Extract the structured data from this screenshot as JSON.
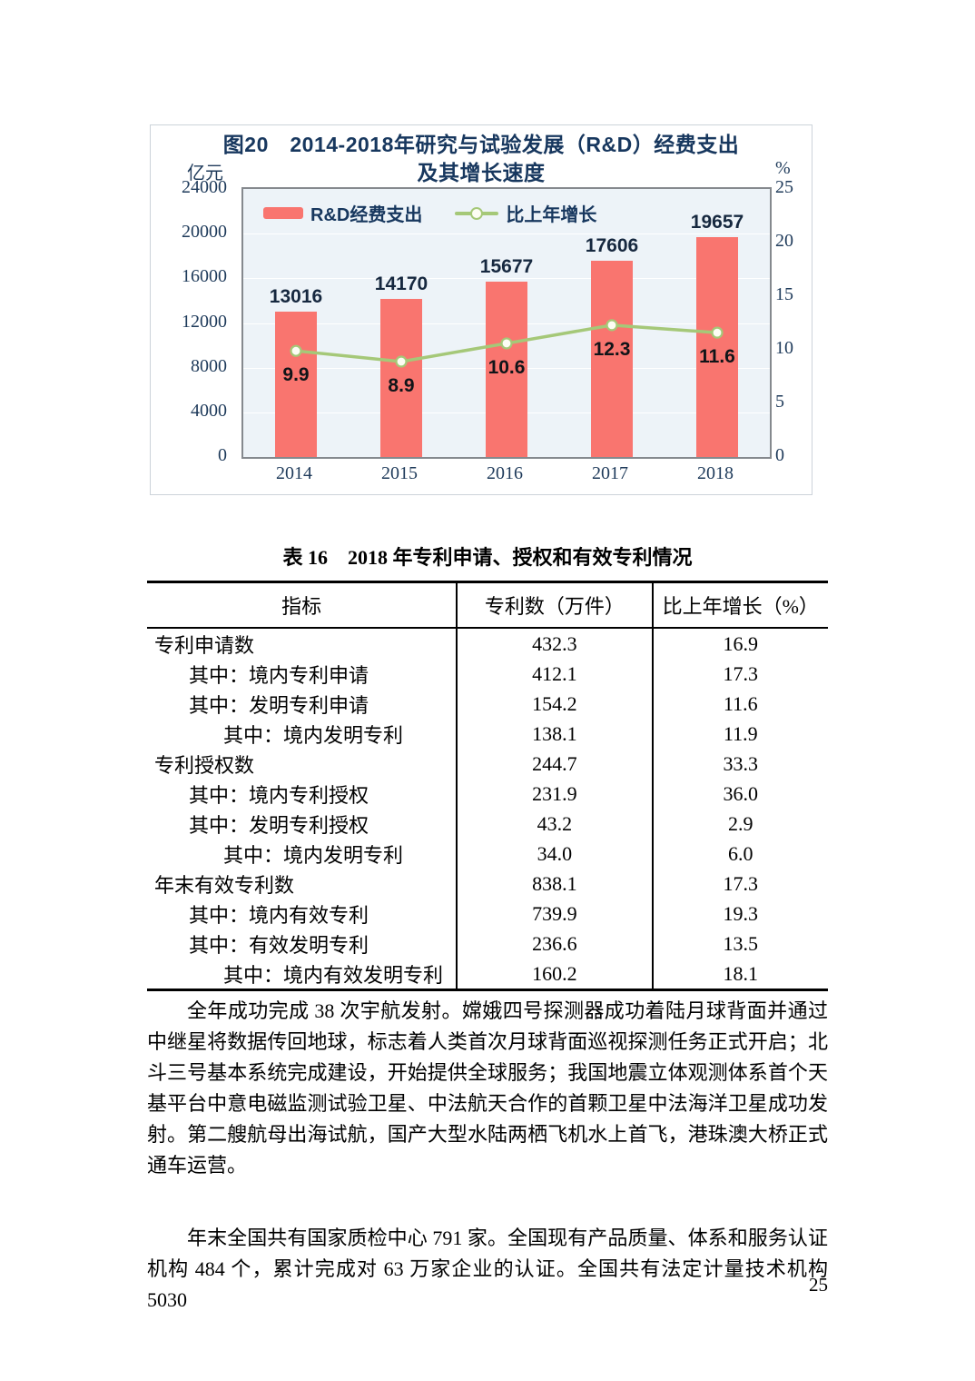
{
  "figure": {
    "title_lines": [
      "图20　2014-2018年研究与试验发展（R&D）经费支出",
      "及其增长速度"
    ],
    "left_unit": "亿元",
    "right_unit": "%"
  },
  "chart_data": {
    "type": "bar",
    "title": "图20 2014-2018年研究与试验发展（R&D）经费支出及其增长速度",
    "categories": [
      "2014",
      "2015",
      "2016",
      "2017",
      "2018"
    ],
    "series": [
      {
        "name": "R&D经费支出",
        "type": "bar",
        "axis": "left",
        "color": "#F9756F",
        "values": [
          13016,
          14170,
          15677,
          17606,
          19657
        ]
      },
      {
        "name": "比上年增长",
        "type": "line",
        "axis": "right",
        "color": "#A5C878",
        "values": [
          9.9,
          8.9,
          10.6,
          12.3,
          11.6
        ]
      }
    ],
    "left_axis": {
      "unit": "亿元",
      "min": 0,
      "max": 24000,
      "ticks": [
        24000,
        20000,
        16000,
        12000,
        8000,
        4000,
        0
      ]
    },
    "right_axis": {
      "unit": "%",
      "min": 0,
      "max": 25,
      "ticks": [
        25,
        20,
        15,
        10,
        5,
        0
      ]
    },
    "grid": true,
    "legend_position": "top-left-inside",
    "plot_bg": "#EDF3F8"
  },
  "table": {
    "title": "表 16　2018 年专利申请、授权和有效专利情况",
    "headers": [
      "指标",
      "专利数（万件）",
      "比上年增长（%）"
    ],
    "rows": [
      {
        "label": "专利申请数",
        "indent": 0,
        "value": "432.3",
        "growth": "16.9"
      },
      {
        "label": "其中：境内专利申请",
        "indent": 1,
        "value": "412.1",
        "growth": "17.3"
      },
      {
        "label": "其中：发明专利申请",
        "indent": 1,
        "value": "154.2",
        "growth": "11.6"
      },
      {
        "label": "其中：境内发明专利",
        "indent": 2,
        "value": "138.1",
        "growth": "11.9"
      },
      {
        "label": "专利授权数",
        "indent": 0,
        "value": "244.7",
        "growth": "33.3"
      },
      {
        "label": "其中：境内专利授权",
        "indent": 1,
        "value": "231.9",
        "growth": "36.0"
      },
      {
        "label": "其中：发明专利授权",
        "indent": 1,
        "value": "43.2",
        "growth": "2.9"
      },
      {
        "label": "其中：境内发明专利",
        "indent": 2,
        "value": "34.0",
        "growth": "6.0"
      },
      {
        "label": "年末有效专利数",
        "indent": 0,
        "value": "838.1",
        "growth": "17.3"
      },
      {
        "label": "其中：境内有效专利",
        "indent": 1,
        "value": "739.9",
        "growth": "19.3"
      },
      {
        "label": "其中：有效发明专利",
        "indent": 1,
        "value": "236.6",
        "growth": "13.5"
      },
      {
        "label": "其中：境内有效发明专利",
        "indent": 2,
        "value": "160.2",
        "growth": "18.1"
      }
    ]
  },
  "paragraphs": [
    "全年成功完成 38 次宇航发射。嫦娥四号探测器成功着陆月球背面并通过中继星将数据传回地球，标志着人类首次月球背面巡视探测任务正式开启；北斗三号基本系统完成建设，开始提供全球服务；我国地震立体观测体系首个天基平台中意电磁监测试验卫星、中法航天合作的首颗卫星中法海洋卫星成功发射。第二艘航母出海试航，国产大型水陆两栖飞机水上首飞，港珠澳大桥正式通车运营。",
    "年末全国共有国家质检中心 791 家。全国现有产品质量、体系和服务认证机构 484 个，累计完成对 63 万家企业的认证。全国共有法定计量技术机构 5030"
  ],
  "page_number": "25"
}
